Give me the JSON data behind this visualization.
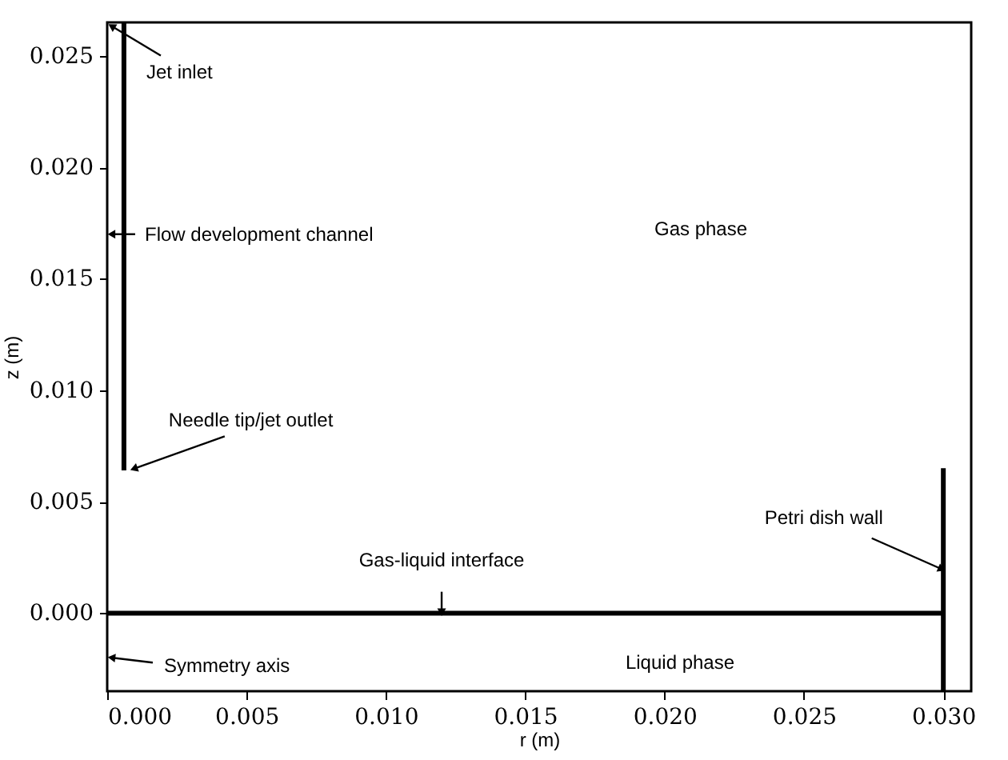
{
  "chart_data": {
    "type": "line",
    "xlabel": "r (m)",
    "ylabel": "z (m)",
    "xlim": [
      0,
      0.031
    ],
    "ylim": [
      -0.0035,
      0.0265
    ],
    "xticks": [
      {
        "value": 0,
        "label": "0.000"
      },
      0.005,
      {
        "value": 0.01,
        "label": "0.010"
      },
      0.015,
      {
        "value": 0.02,
        "label": "0.020"
      },
      0.025,
      {
        "value": 0.03,
        "label": "0.030"
      }
    ],
    "yticks": [
      {
        "value": 0,
        "label": "0.000"
      },
      0.005,
      {
        "value": 0.01,
        "label": "0.010"
      },
      0.015,
      {
        "value": 0.02,
        "label": "0.020"
      },
      0.025
    ],
    "grid": false,
    "legend": false,
    "marker": "none",
    "line_style": "solid",
    "series": [
      {
        "color": "#000000",
        "x": [
          0.0006,
          0.0006
        ],
        "values": [
          0.0064,
          0.0265
        ]
      },
      {
        "color": "#000000",
        "x": [
          0,
          0.03
        ],
        "values": [
          0,
          0
        ]
      },
      {
        "color": "#000000",
        "x": [
          0.03,
          0.03
        ],
        "values": [
          -0.0035,
          0.0065
        ]
      }
    ],
    "annotations": [
      {
        "text": "Jet inlet",
        "x": 0.0002,
        "y": 0.0263
      },
      {
        "text": "Flow development channel",
        "x": 0.0002,
        "y": 0.017
      },
      {
        "text": "Needle tip/jet outlet",
        "x": 0.001,
        "y": 0.0065
      },
      {
        "text": "Gas-liquid interface",
        "x": 0.012,
        "y": 0.0001
      },
      {
        "text": "Petri dish wall",
        "x": 0.0299,
        "y": 0.002
      },
      {
        "text": "Symmetry axis",
        "x": 0.0002,
        "y": -0.002
      },
      "Gas phase",
      "Liquid phase"
    ]
  }
}
